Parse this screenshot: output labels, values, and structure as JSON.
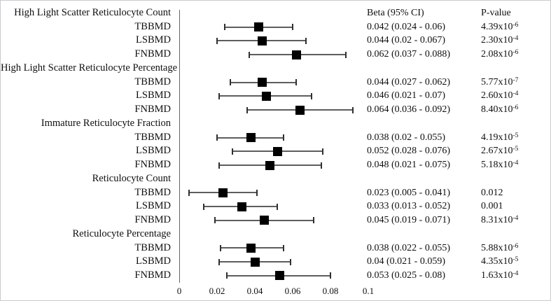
{
  "columns": {
    "beta_header": "Beta (95% CI)",
    "pvalue_header": "P-value"
  },
  "colors": {
    "marker": "#000000",
    "ci_line": "#5d5d5d",
    "axis_line": "#666666",
    "border": "#c6ccd1",
    "text": "#0f0f0f"
  },
  "chart_data": {
    "type": "forest",
    "marker_shape": "black-square",
    "xlim": [
      0,
      0.1
    ],
    "x_ticks": [
      "0",
      "0.02",
      "0.04",
      "0.06",
      "0.08",
      "0.1"
    ],
    "x_tick_values": [
      0,
      0.02,
      0.04,
      0.06,
      0.08,
      0.1
    ],
    "xlabel": "",
    "ylabel": "",
    "title": "",
    "groups": [
      {
        "label": "High Light Scatter Reticulocyte Count",
        "rows": [
          {
            "label": "TBBMD",
            "beta": 0.042,
            "ci": [
              0.024,
              0.06
            ],
            "beta_text": "0.042 (0.024 - 0.06)",
            "p_text": "4.39x10",
            "p_exp": "-6"
          },
          {
            "label": "LSBMD",
            "beta": 0.044,
            "ci": [
              0.02,
              0.067
            ],
            "beta_text": "0.044 (0.02 - 0.067)",
            "p_text": "2.30x10",
            "p_exp": "-4"
          },
          {
            "label": "FNBMD",
            "beta": 0.062,
            "ci": [
              0.037,
              0.088
            ],
            "beta_text": "0.062 (0.037 - 0.088)",
            "p_text": "2.08x10",
            "p_exp": "-6"
          }
        ]
      },
      {
        "label": "High Light Scatter Reticulocyte Percentage",
        "rows": [
          {
            "label": "TBBMD",
            "beta": 0.044,
            "ci": [
              0.027,
              0.062
            ],
            "beta_text": "0.044 (0.027 - 0.062)",
            "p_text": "5.77x10",
            "p_exp": "-7"
          },
          {
            "label": "LSBMD",
            "beta": 0.046,
            "ci": [
              0.021,
              0.07
            ],
            "beta_text": "0.046 (0.021 - 0.07)",
            "p_text": "2.60x10",
            "p_exp": "-4"
          },
          {
            "label": "FNBMD",
            "beta": 0.064,
            "ci": [
              0.036,
              0.092
            ],
            "beta_text": "0.064 (0.036 - 0.092)",
            "p_text": "8.40x10",
            "p_exp": "-6"
          }
        ]
      },
      {
        "label": "Immature Reticulocyte Fraction",
        "rows": [
          {
            "label": "TBBMD",
            "beta": 0.038,
            "ci": [
              0.02,
              0.055
            ],
            "beta_text": "0.038 (0.02 - 0.055)",
            "p_text": "4.19x10",
            "p_exp": "-5"
          },
          {
            "label": "LSBMD",
            "beta": 0.052,
            "ci": [
              0.028,
              0.076
            ],
            "beta_text": "0.052 (0.028 - 0.076)",
            "p_text": "2.67x10",
            "p_exp": "-5"
          },
          {
            "label": "FNBMD",
            "beta": 0.048,
            "ci": [
              0.021,
              0.075
            ],
            "beta_text": "0.048 (0.021 - 0.075)",
            "p_text": "5.18x10",
            "p_exp": "-4"
          }
        ]
      },
      {
        "label": "Reticulocyte Count",
        "rows": [
          {
            "label": "TBBMD",
            "beta": 0.023,
            "ci": [
              0.005,
              0.041
            ],
            "beta_text": "0.023 (0.005 - 0.041)",
            "p_text": "0.012",
            "p_exp": null
          },
          {
            "label": "LSBMD",
            "beta": 0.033,
            "ci": [
              0.013,
              0.052
            ],
            "beta_text": "0.033 (0.013 - 0.052)",
            "p_text": "0.001",
            "p_exp": null
          },
          {
            "label": "FNBMD",
            "beta": 0.045,
            "ci": [
              0.019,
              0.071
            ],
            "beta_text": "0.045 (0.019 - 0.071)",
            "p_text": "8.31x10",
            "p_exp": "-4"
          }
        ]
      },
      {
        "label": "Reticulocyte Percentage",
        "rows": [
          {
            "label": "TBBMD",
            "beta": 0.038,
            "ci": [
              0.022,
              0.055
            ],
            "beta_text": "0.038 (0.022 - 0.055)",
            "p_text": "5.88x10",
            "p_exp": "-6"
          },
          {
            "label": "LSBMD",
            "beta": 0.04,
            "ci": [
              0.021,
              0.059
            ],
            "beta_text": "0.04 (0.021 - 0.059)",
            "p_text": "4.35x10",
            "p_exp": "-5"
          },
          {
            "label": "FNBMD",
            "beta": 0.053,
            "ci": [
              0.025,
              0.08
            ],
            "beta_text": "0.053 (0.025 - 0.08)",
            "p_text": "1.63x10",
            "p_exp": "-4"
          }
        ]
      }
    ]
  }
}
